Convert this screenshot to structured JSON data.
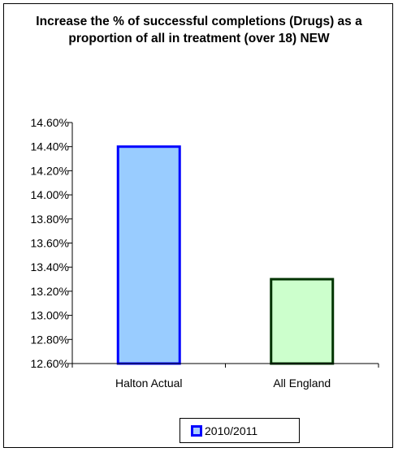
{
  "chart_data": {
    "type": "bar",
    "title": "Increase the % of successful completions (Drugs) as a proportion of all in treatment (over 18) NEW",
    "categories": [
      "Halton Actual",
      "All England"
    ],
    "values": [
      14.4,
      13.3
    ],
    "bar_fills": [
      "#99ccff",
      "#ccffcc"
    ],
    "bar_strokes": [
      "#0000ff",
      "#003300"
    ],
    "ylim": [
      12.6,
      14.6
    ],
    "y_ticks": [
      "14.60%",
      "14.40%",
      "14.20%",
      "14.00%",
      "13.80%",
      "13.60%",
      "13.40%",
      "13.20%",
      "13.00%",
      "12.80%",
      "12.60%"
    ],
    "series": [
      {
        "name": "2010/2011",
        "values": [
          14.4,
          13.3
        ]
      }
    ],
    "grid": false,
    "legend_position": "bottom"
  }
}
